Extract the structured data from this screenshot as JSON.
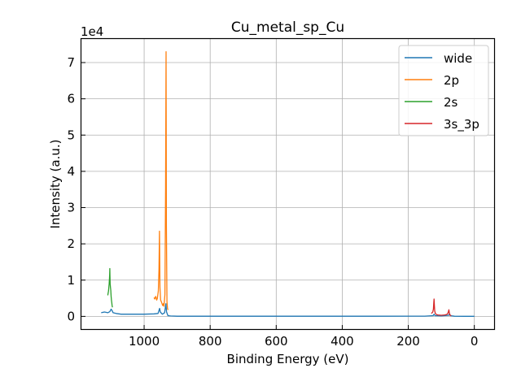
{
  "chart_data": {
    "type": "line",
    "title": "Cu_metal_sp_Cu",
    "xlabel": "Binding Energy (eV)",
    "ylabel": "Intensity (a.u.)",
    "y_offset_label": "1e4",
    "xlim": [
      1190,
      -60
    ],
    "ylim": [
      -0.35,
      7.65
    ],
    "x_inverted": true,
    "x_ticks": [
      1000,
      800,
      600,
      400,
      200,
      0
    ],
    "y_ticks": [
      0,
      1,
      2,
      3,
      4,
      5,
      6,
      7
    ],
    "grid": true,
    "legend_position": "top-right",
    "series": [
      {
        "name": "wide",
        "color": "#1f77b4",
        "points": [
          [
            1130,
            0.1
          ],
          [
            1120,
            0.12
          ],
          [
            1110,
            0.1
          ],
          [
            1104,
            0.13
          ],
          [
            1100,
            0.2
          ],
          [
            1097,
            0.16
          ],
          [
            1094,
            0.1
          ],
          [
            1085,
            0.08
          ],
          [
            1070,
            0.06
          ],
          [
            1040,
            0.06
          ],
          [
            1000,
            0.06
          ],
          [
            970,
            0.07
          ],
          [
            958,
            0.08
          ],
          [
            953,
            0.22
          ],
          [
            951,
            0.12
          ],
          [
            945,
            0.06
          ],
          [
            938,
            0.1
          ],
          [
            934,
            0.35
          ],
          [
            932,
            0.12
          ],
          [
            928,
            0.02
          ],
          [
            920,
            0.01
          ],
          [
            900,
            0.005
          ],
          [
            700,
            0.004
          ],
          [
            500,
            0.004
          ],
          [
            300,
            0.004
          ],
          [
            150,
            0.006
          ],
          [
            125,
            0.02
          ],
          [
            122,
            0.06
          ],
          [
            119,
            0.02
          ],
          [
            100,
            0.01
          ],
          [
            77,
            0.03
          ],
          [
            75,
            0.08
          ],
          [
            73,
            0.02
          ],
          [
            60,
            0.005
          ],
          [
            30,
            0.002
          ],
          [
            0,
            0.002
          ]
        ]
      },
      {
        "name": "2p",
        "color": "#ff7f0e",
        "points": [
          [
            970,
            0.52
          ],
          [
            968,
            0.48
          ],
          [
            965,
            0.55
          ],
          [
            962,
            0.45
          ],
          [
            960,
            0.5
          ],
          [
            957,
            0.7
          ],
          [
            955,
            1.3
          ],
          [
            953.5,
            2.35
          ],
          [
            952,
            0.8
          ],
          [
            950,
            0.45
          ],
          [
            947,
            0.38
          ],
          [
            944,
            0.3
          ],
          [
            942,
            0.35
          ],
          [
            940,
            0.28
          ],
          [
            937,
            0.6
          ],
          [
            935,
            3.5
          ],
          [
            933.5,
            7.3
          ],
          [
            932.5,
            2.5
          ],
          [
            931,
            0.4
          ],
          [
            929,
            0.2
          ],
          [
            927,
            0.18
          ]
        ]
      },
      {
        "name": "2s",
        "color": "#2ca02c",
        "points": [
          [
            1110,
            0.58
          ],
          [
            1109,
            0.65
          ],
          [
            1108,
            0.7
          ],
          [
            1107,
            0.8
          ],
          [
            1106,
            0.9
          ],
          [
            1105,
            1.05
          ],
          [
            1104.5,
            1.15
          ],
          [
            1104,
            1.32
          ],
          [
            1103.5,
            1.1
          ],
          [
            1103,
            0.9
          ],
          [
            1102,
            0.8
          ],
          [
            1101,
            0.72
          ],
          [
            1100,
            0.55
          ],
          [
            1099,
            0.45
          ],
          [
            1098,
            0.38
          ],
          [
            1097,
            0.3
          ],
          [
            1096,
            0.25
          ]
        ]
      },
      {
        "name": "3s_3p",
        "color": "#d62728",
        "points": [
          [
            130,
            0.08
          ],
          [
            128,
            0.1
          ],
          [
            126,
            0.12
          ],
          [
            124,
            0.2
          ],
          [
            123,
            0.35
          ],
          [
            122,
            0.48
          ],
          [
            121,
            0.3
          ],
          [
            120,
            0.15
          ],
          [
            118,
            0.08
          ],
          [
            115,
            0.05
          ],
          [
            110,
            0.04
          ],
          [
            100,
            0.03
          ],
          [
            90,
            0.04
          ],
          [
            85,
            0.05
          ],
          [
            82,
            0.06
          ],
          [
            80,
            0.09
          ],
          [
            78,
            0.14
          ],
          [
            77,
            0.18
          ],
          [
            76,
            0.12
          ],
          [
            75,
            0.06
          ],
          [
            73,
            0.03
          ],
          [
            70,
            0.02
          ]
        ]
      }
    ]
  }
}
